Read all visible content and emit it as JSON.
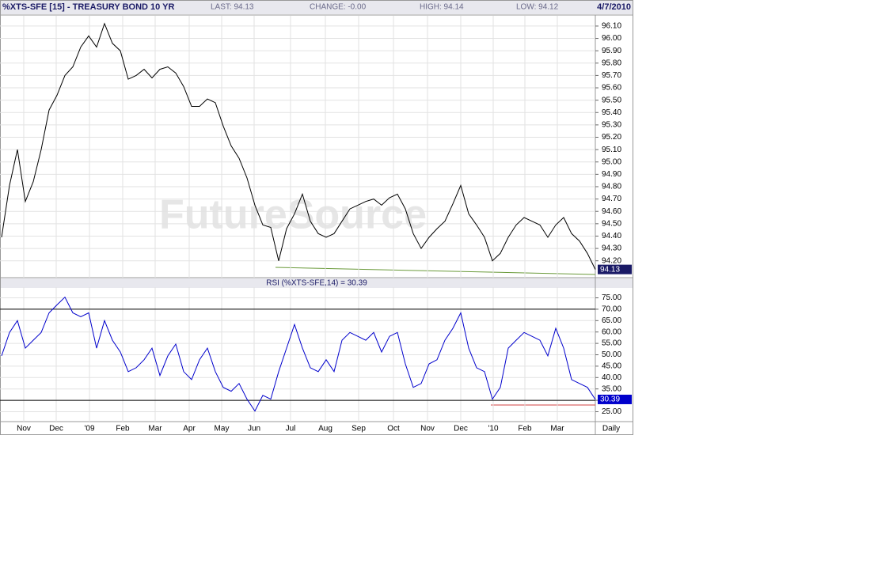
{
  "header": {
    "symbol": "%XTS-SFE [15] - TREASURY BOND 10 YR",
    "last": "LAST: 94.13",
    "change": "CHANGE: -0.00",
    "high": "HIGH: 94.14",
    "low": "LOW: 94.12",
    "date": "4/7/2010"
  },
  "chart_data": [
    {
      "type": "line",
      "watermark": "FutureSource",
      "color": "#000000",
      "grid": true,
      "ylim": [
        94.07,
        96.17
      ],
      "yticks": [
        {
          "value": 94.2,
          "label": "94.20"
        },
        {
          "value": 94.3,
          "label": "94.30"
        },
        {
          "value": 94.4,
          "label": "94.40"
        },
        {
          "value": 94.5,
          "label": "94.50"
        },
        {
          "value": 94.6,
          "label": "94.60"
        },
        {
          "value": 94.7,
          "label": "94.70"
        },
        {
          "value": 94.8,
          "label": "94.80"
        },
        {
          "value": 94.9,
          "label": "94.90"
        },
        {
          "value": 95,
          "label": "95.00"
        },
        {
          "value": 95.1,
          "label": "95.10"
        },
        {
          "value": 95.2,
          "label": "95.20"
        },
        {
          "value": 95.3,
          "label": "95.30"
        },
        {
          "value": 95.4,
          "label": "95.40"
        },
        {
          "value": 95.5,
          "label": "95.50"
        },
        {
          "value": 95.6,
          "label": "95.60"
        },
        {
          "value": 95.7,
          "label": "95.70"
        },
        {
          "value": 95.8,
          "label": "95.80"
        },
        {
          "value": 95.9,
          "label": "95.90"
        },
        {
          "value": 96,
          "label": "96.00"
        },
        {
          "value": 96.1,
          "label": "96.10"
        }
      ],
      "values": [
        94.39,
        94.81,
        95.1,
        94.68,
        94.84,
        95.1,
        95.42,
        95.54,
        95.7,
        95.77,
        95.93,
        96.02,
        95.93,
        96.12,
        95.96,
        95.9,
        95.67,
        95.7,
        95.75,
        95.68,
        95.75,
        95.77,
        95.72,
        95.61,
        95.45,
        95.45,
        95.51,
        95.48,
        95.29,
        95.13,
        95.03,
        94.87,
        94.65,
        94.49,
        94.47,
        94.2,
        94.46,
        94.58,
        94.74,
        94.52,
        94.42,
        94.39,
        94.42,
        94.52,
        94.62,
        94.65,
        94.68,
        94.7,
        94.65,
        94.71,
        94.74,
        94.62,
        94.42,
        94.3,
        94.39,
        94.46,
        94.52,
        94.66,
        94.81,
        94.58,
        94.49,
        94.39,
        94.2,
        94.26,
        94.39,
        94.49,
        94.55,
        94.52,
        94.49,
        94.39,
        94.49,
        94.55,
        94.42,
        94.36,
        94.26,
        94.13
      ]
    },
    {
      "type": "line",
      "title": "RSI (%XTS-SFE,14) = 30.39",
      "color": "#0000cc",
      "grid": true,
      "ylim": [
        21,
        79
      ],
      "yticks": [
        {
          "value": 25,
          "label": "25.00"
        },
        {
          "value": 30,
          "label": "30.00"
        },
        {
          "value": 35,
          "label": "35.00"
        },
        {
          "value": 40,
          "label": "40.00"
        },
        {
          "value": 45,
          "label": "45.00"
        },
        {
          "value": 50,
          "label": "50.00"
        },
        {
          "value": 55,
          "label": "55.00"
        },
        {
          "value": 60,
          "label": "60.00"
        },
        {
          "value": 65,
          "label": "65.00"
        },
        {
          "value": 70,
          "label": "70.00"
        },
        {
          "value": 75,
          "label": "75.00"
        }
      ],
      "hlines": [
        70,
        30
      ],
      "xtick_labels": [
        "Nov",
        "Dec",
        "'09",
        "Feb",
        "Mar",
        "Apr",
        "May",
        "Jun",
        "Jul",
        "Aug",
        "Sep",
        "Oct",
        "Nov",
        "Dec",
        "'10",
        "Feb",
        "Mar"
      ],
      "period": "Daily",
      "values": [
        49.5,
        59.8,
        65.0,
        52.9,
        56.4,
        59.8,
        68.4,
        71.9,
        75.3,
        68.4,
        66.7,
        68.4,
        52.9,
        65.0,
        56.4,
        51.2,
        42.6,
        44.3,
        47.8,
        52.9,
        40.9,
        49.5,
        54.7,
        42.6,
        39.1,
        47.8,
        52.9,
        42.6,
        35.7,
        34.0,
        37.4,
        30.5,
        25.3,
        32.2,
        30.5,
        42.6,
        52.9,
        63.3,
        52.9,
        44.3,
        42.6,
        47.8,
        42.6,
        56.4,
        59.8,
        58.1,
        56.4,
        59.8,
        51.2,
        58.1,
        59.8,
        46.0,
        35.7,
        37.4,
        46.0,
        47.8,
        56.4,
        61.6,
        68.4,
        52.9,
        44.3,
        42.6,
        30.5,
        35.7,
        52.9,
        56.4,
        59.8,
        58.1,
        56.4,
        49.5,
        61.6,
        52.9,
        39.1,
        37.4,
        35.7,
        30.39
      ]
    }
  ]
}
